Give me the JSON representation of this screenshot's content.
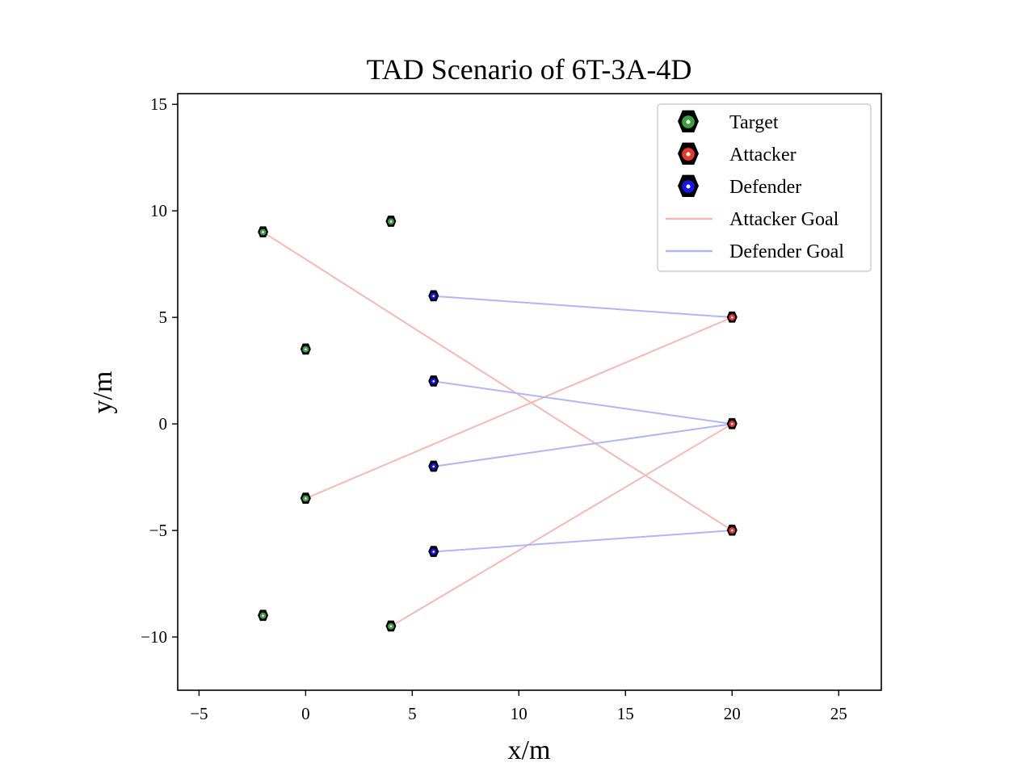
{
  "chart_data": {
    "type": "scatter",
    "title": "TAD Scenario of 6T-3A-4D",
    "xlabel": "x/m",
    "ylabel": "y/m",
    "xlim": [
      -6,
      27
    ],
    "ylim": [
      -12.5,
      15.5
    ],
    "xticks": [
      -5,
      0,
      5,
      10,
      15,
      20,
      25
    ],
    "yticks": [
      -10,
      -5,
      0,
      5,
      10,
      15
    ],
    "xtick_labels": [
      "−5",
      "0",
      "5",
      "10",
      "15",
      "20",
      "25"
    ],
    "ytick_labels": [
      "−10",
      "−5",
      "0",
      "5",
      "10",
      "15"
    ],
    "grid": false,
    "legend_position": "top-right",
    "colors": {
      "target": "#3f9e3f",
      "attacker": "#e8382a",
      "defender": "#1515e6",
      "attacker_goal": "#f4b9b2",
      "defender_goal": "#b0b6f4"
    },
    "series": [
      {
        "name": "Target",
        "kind": "marker",
        "color": "#3f9e3f",
        "points": [
          [
            -2,
            9
          ],
          [
            4,
            9.5
          ],
          [
            0,
            3.5
          ],
          [
            0,
            -3.5
          ],
          [
            -2,
            -9
          ],
          [
            4,
            -9.5
          ]
        ]
      },
      {
        "name": "Attacker",
        "kind": "marker",
        "color": "#e8382a",
        "points": [
          [
            20,
            5
          ],
          [
            20,
            0
          ],
          [
            20,
            -5
          ]
        ]
      },
      {
        "name": "Defender",
        "kind": "marker",
        "color": "#1515e6",
        "points": [
          [
            6,
            6
          ],
          [
            6,
            2
          ],
          [
            6,
            -2
          ],
          [
            6,
            -6
          ]
        ]
      },
      {
        "name": "Attacker Goal",
        "kind": "segments",
        "color": "#f4b9b2",
        "segments": [
          [
            [
              20,
              -5
            ],
            [
              -2,
              9
            ]
          ],
          [
            [
              20,
              5
            ],
            [
              0,
              -3.5
            ]
          ],
          [
            [
              20,
              0
            ],
            [
              4,
              -9.5
            ]
          ]
        ]
      },
      {
        "name": "Defender Goal",
        "kind": "segments",
        "color": "#b0b6f4",
        "segments": [
          [
            [
              6,
              6
            ],
            [
              20,
              5
            ]
          ],
          [
            [
              6,
              2
            ],
            [
              20,
              0
            ]
          ],
          [
            [
              6,
              -2
            ],
            [
              20,
              0
            ]
          ],
          [
            [
              6,
              -6
            ],
            [
              20,
              -5
            ]
          ]
        ]
      }
    ],
    "legend": [
      {
        "label": "Target",
        "kind": "marker",
        "color": "#3f9e3f"
      },
      {
        "label": "Attacker",
        "kind": "marker",
        "color": "#e8382a"
      },
      {
        "label": "Defender",
        "kind": "marker",
        "color": "#1515e6"
      },
      {
        "label": "Attacker Goal",
        "kind": "line",
        "color": "#f4b9b2"
      },
      {
        "label": "Defender Goal",
        "kind": "line",
        "color": "#b0b6f4"
      }
    ]
  }
}
